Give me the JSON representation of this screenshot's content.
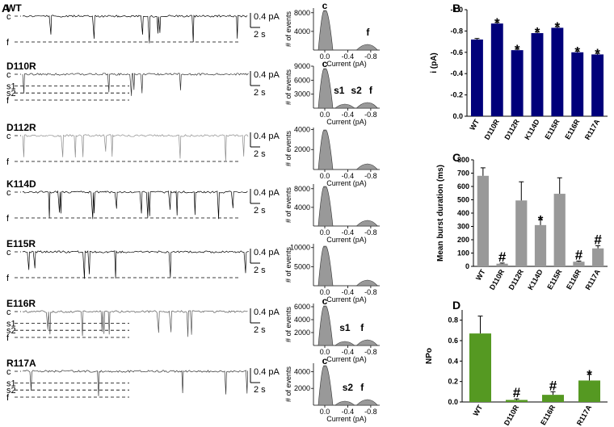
{
  "panel_labels": {
    "A": "A",
    "B": "B",
    "C": "C",
    "D": "D"
  },
  "scale": {
    "amp": "0.4 pA",
    "time": "2 s"
  },
  "chart_data": [
    {
      "type": "trace-grid",
      "traces": [
        {
          "name": "WT",
          "levels": [
            "c",
            "f"
          ],
          "color": "#000000",
          "hist_yticks": [
            4000,
            8000
          ],
          "hist_ymax": 9000,
          "peaks": [
            {
              "label": "c",
              "x": 0.0
            },
            {
              "label": "f",
              "x": -0.75
            }
          ]
        },
        {
          "name": "D110R",
          "levels": [
            "c",
            "s1",
            "s2",
            "f"
          ],
          "color": "#333333",
          "hist_yticks": [
            3000,
            6000,
            9000
          ],
          "hist_ymax": 9000,
          "peaks": [
            {
              "label": "c",
              "x": 0.0
            },
            {
              "label": "s1",
              "x": -0.25
            },
            {
              "label": "s2",
              "x": -0.55
            },
            {
              "label": "f",
              "x": -0.8
            }
          ]
        },
        {
          "name": "D112R",
          "levels": [
            "c",
            "f"
          ],
          "color": "#8c8c8c",
          "hist_yticks": [
            2000,
            4000
          ],
          "hist_ymax": 4200,
          "peaks": []
        },
        {
          "name": "K114D",
          "levels": [
            "c",
            "f"
          ],
          "color": "#000000",
          "hist_yticks": [
            4000,
            8000
          ],
          "hist_ymax": 9000,
          "peaks": []
        },
        {
          "name": "E115R",
          "levels": [
            "c",
            "f"
          ],
          "color": "#000000",
          "hist_yticks": [
            5000,
            10000
          ],
          "hist_ymax": 11000,
          "peaks": []
        },
        {
          "name": "E116R",
          "levels": [
            "c",
            "s1",
            "s2",
            "f"
          ],
          "color": "#555555",
          "hist_yticks": [
            2000,
            4000,
            6000
          ],
          "hist_ymax": 6500,
          "peaks": [
            {
              "label": "c",
              "x": 0.0
            },
            {
              "label": "s1",
              "x": -0.35
            },
            {
              "label": "f",
              "x": -0.65
            }
          ]
        },
        {
          "name": "R117A",
          "levels": [
            "c",
            "s1",
            "s2",
            "f"
          ],
          "color": "#333333",
          "hist_yticks": [
            2000,
            4000
          ],
          "hist_ymax": 5000,
          "peaks": [
            {
              "label": "c",
              "x": 0.0
            },
            {
              "label": "s2",
              "x": -0.4
            },
            {
              "label": "f",
              "x": -0.65
            }
          ]
        }
      ],
      "hist_xticks": [
        "0.0",
        "-0.4",
        "-0.8"
      ],
      "hist_xlabel": "Current (pA)",
      "hist_ylabel": "# of events"
    },
    {
      "type": "bar",
      "panel": "B",
      "categories": [
        "WT",
        "D110R",
        "D112R",
        "K114D",
        "E115R",
        "E116R",
        "R117A"
      ],
      "values": [
        -0.72,
        -0.87,
        -0.62,
        -0.78,
        -0.83,
        -0.6,
        -0.58
      ],
      "errors": [
        0.01,
        0.01,
        0.01,
        0.01,
        0.01,
        0.01,
        0.01
      ],
      "marks": [
        "",
        "*",
        "*",
        "*",
        "*",
        "*",
        "*"
      ],
      "ylabel": "i (pA)",
      "yticks": [
        "-1.0",
        "-0.8",
        "-0.6",
        "-0.4",
        "-0.2",
        "0.0"
      ],
      "ylim": [
        0,
        -1.0
      ],
      "color": "#00007a"
    },
    {
      "type": "bar",
      "panel": "C",
      "categories": [
        "WT",
        "D110R",
        "D112R",
        "K114D",
        "E115R",
        "E116R",
        "R117A"
      ],
      "values": [
        680,
        20,
        495,
        310,
        545,
        35,
        135
      ],
      "errors": [
        60,
        5,
        140,
        40,
        120,
        5,
        20
      ],
      "marks": [
        "",
        "#",
        "",
        "*",
        "",
        "#",
        "#"
      ],
      "ylabel": "Mean burst duration (ms)",
      "yticks": [
        "0",
        "100",
        "200",
        "300",
        "400",
        "500",
        "600",
        "700",
        "800"
      ],
      "ylim": [
        0,
        800
      ],
      "color": "#999999"
    },
    {
      "type": "bar",
      "panel": "D",
      "categories": [
        "WT",
        "D110R",
        "E116R",
        "R117A"
      ],
      "values": [
        0.67,
        0.02,
        0.07,
        0.21
      ],
      "errors": [
        0.17,
        0.01,
        0.03,
        0.06
      ],
      "marks": [
        "",
        "#",
        "#",
        "*"
      ],
      "ylabel": "NPo",
      "yticks": [
        "0.0",
        "0.2",
        "0.4",
        "0.6",
        "0.8"
      ],
      "ylim": [
        0,
        0.9
      ],
      "color": "#559922"
    }
  ]
}
